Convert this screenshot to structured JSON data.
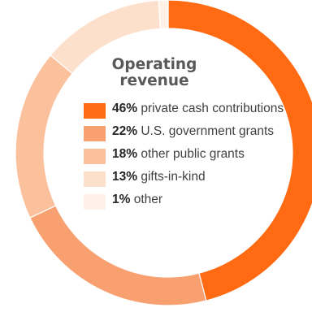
{
  "chart_data": {
    "type": "pie",
    "title": "Operating revenue",
    "categories": [
      "private cash contributions",
      "U.S. government grants",
      "other public grants",
      "gifts-in-kind",
      "other"
    ],
    "values": [
      46,
      22,
      18,
      13,
      1
    ],
    "labels_pct": [
      "46%",
      "22%",
      "18%",
      "13%",
      "1%"
    ],
    "colors": [
      "#ff6a13",
      "#f8a070",
      "#fbc19c",
      "#fde0cc",
      "#fff1e8"
    ],
    "legend_placement": "center",
    "start_angle_deg": 0,
    "direction": "clockwise"
  }
}
